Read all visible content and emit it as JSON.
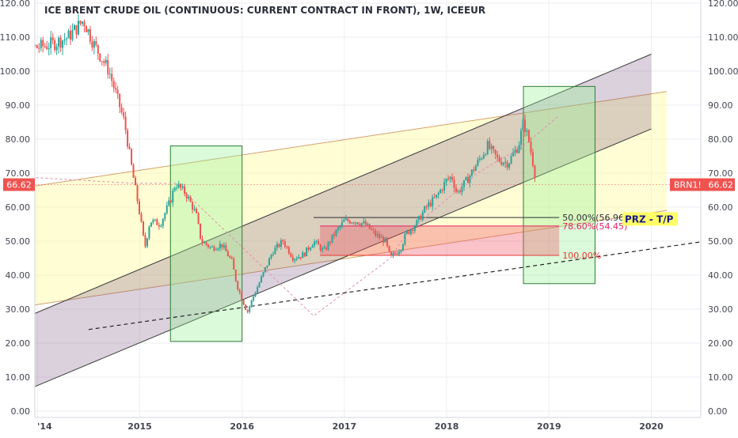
{
  "chart_data": {
    "type": "candlestick",
    "title": "ICE BRENT CRUDE OIL (CONTINUOUS: CURRENT CONTRACT IN FRONT), 1W, ICEEUR",
    "ylim": [
      0,
      120
    ],
    "y_ticks": [
      "0.00",
      "10.00",
      "20.00",
      "30.00",
      "40.00",
      "50.00",
      "60.00",
      "70.00",
      "80.00",
      "90.00",
      "100.00",
      "110.00",
      "120.00"
    ],
    "x_ticks": [
      {
        "label": "'14",
        "t": 2014.0
      },
      {
        "label": "2015",
        "t": 2015.0
      },
      {
        "label": "2016",
        "t": 2016.0
      },
      {
        "label": "2017",
        "t": 2017.0
      },
      {
        "label": "2018",
        "t": 2018.0
      },
      {
        "label": "2019",
        "t": 2019.0
      },
      {
        "label": "2020",
        "t": 2020.0
      }
    ],
    "last_price": {
      "value": 66.62,
      "label": "66.62",
      "symbol": "BRN1!"
    },
    "price_path": [
      [
        2014.0,
        107
      ],
      [
        2014.15,
        108
      ],
      [
        2014.3,
        110
      ],
      [
        2014.45,
        115
      ],
      [
        2014.55,
        108
      ],
      [
        2014.7,
        100
      ],
      [
        2014.85,
        85
      ],
      [
        2014.93,
        70
      ],
      [
        2015.0,
        58
      ],
      [
        2015.05,
        48
      ],
      [
        2015.1,
        56
      ],
      [
        2015.2,
        55
      ],
      [
        2015.3,
        62
      ],
      [
        2015.35,
        67
      ],
      [
        2015.45,
        64
      ],
      [
        2015.55,
        58
      ],
      [
        2015.6,
        50
      ],
      [
        2015.7,
        48
      ],
      [
        2015.8,
        49
      ],
      [
        2015.9,
        44
      ],
      [
        2015.95,
        37
      ],
      [
        2016.05,
        29
      ],
      [
        2016.1,
        33
      ],
      [
        2016.2,
        40
      ],
      [
        2016.3,
        47
      ],
      [
        2016.4,
        50
      ],
      [
        2016.5,
        45
      ],
      [
        2016.6,
        46
      ],
      [
        2016.7,
        50
      ],
      [
        2016.8,
        47
      ],
      [
        2016.9,
        52
      ],
      [
        2017.0,
        56
      ],
      [
        2017.1,
        56
      ],
      [
        2017.2,
        55
      ],
      [
        2017.3,
        52
      ],
      [
        2017.4,
        50
      ],
      [
        2017.45,
        45
      ],
      [
        2017.55,
        48
      ],
      [
        2017.6,
        52
      ],
      [
        2017.7,
        55
      ],
      [
        2017.8,
        60
      ],
      [
        2017.9,
        63
      ],
      [
        2018.0,
        68
      ],
      [
        2018.05,
        69
      ],
      [
        2018.1,
        64
      ],
      [
        2018.2,
        68
      ],
      [
        2018.3,
        73
      ],
      [
        2018.4,
        78
      ],
      [
        2018.5,
        74
      ],
      [
        2018.6,
        73
      ],
      [
        2018.7,
        78
      ],
      [
        2018.75,
        85
      ],
      [
        2018.8,
        80
      ],
      [
        2018.85,
        72
      ],
      [
        2018.88,
        66.62
      ]
    ],
    "channels": [
      {
        "name": "ascending-channel",
        "color": "#4a3a6a",
        "lower": [
          [
            2013.6,
            2.5
          ],
          [
            2020.0,
            83
          ]
        ],
        "upper": [
          [
            2013.6,
            24
          ],
          [
            2020.0,
            105
          ]
        ]
      },
      {
        "name": "wide-wedge",
        "color": "#c8a800",
        "lower": [
          [
            2013.7,
            30
          ],
          [
            2020.15,
            59
          ]
        ],
        "upper": [
          [
            2013.7,
            65
          ],
          [
            2020.15,
            94
          ]
        ]
      }
    ],
    "boxes": [
      {
        "name": "green-box-2015",
        "t0": 2015.3,
        "t1": 2016.0,
        "y0": 20.5,
        "y1": 78,
        "color": "#a8f0a8"
      },
      {
        "name": "green-box-2018",
        "t0": 2018.75,
        "t1": 2019.45,
        "y0": 37.5,
        "y1": 95.5,
        "color": "#a8f0a8"
      }
    ],
    "fib_zone": {
      "t0": 2016.7,
      "t1": 2019.1,
      "levels": [
        {
          "label": "50.00%",
          "value": 56.96,
          "value_label": "(56.96)",
          "color": "#2a2e39"
        },
        {
          "label": "78.60%",
          "value": 54.45,
          "value_label": "(54.45)",
          "color": "#e91e63"
        },
        {
          "label": "100.00%",
          "value": 45.8,
          "value_label": "",
          "color": "#e53935"
        }
      ]
    },
    "dashed_trend": {
      "from": [
        2014.5,
        24
      ],
      "to": [
        2021.0,
        52
      ]
    },
    "annotation": "PRZ - T/P"
  }
}
